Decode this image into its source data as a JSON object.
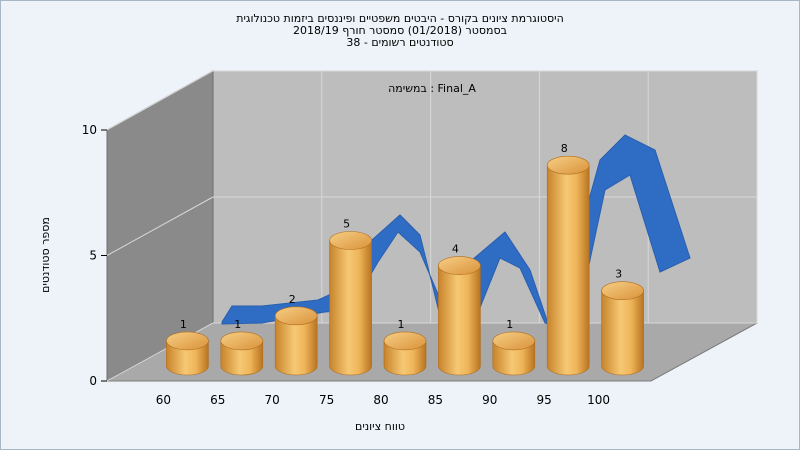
{
  "title": {
    "line1": "היסטוגרמת ציונים בקורס - היבטים משפטיים ופיננסים ביזמות טכנולוגית",
    "line2": "בסמסטר  (01/2018)  סמסטר חורף 2018/19",
    "line3": "סטודנטים רשומים - 38"
  },
  "chart_data": {
    "type": "bar",
    "title": "היסטוגרמת ציונים בקורס - היבטים משפטיים ופיננסים ביזמות טכנולוגית",
    "subtitle": "במשימה : Final_A",
    "xlabel": "טווח ציונים",
    "ylabel": "מספר סטודנטים",
    "categories": [
      "60",
      "65",
      "70",
      "75",
      "80",
      "85",
      "90",
      "95",
      "100"
    ],
    "values": [
      1,
      1,
      2,
      5,
      1,
      4,
      1,
      8,
      3
    ],
    "ylim": [
      0,
      10
    ],
    "yticks": [
      "0",
      "5",
      "10"
    ],
    "grid": true,
    "bar_color": "#e8a642",
    "curve_color": "#2f6cc4"
  }
}
